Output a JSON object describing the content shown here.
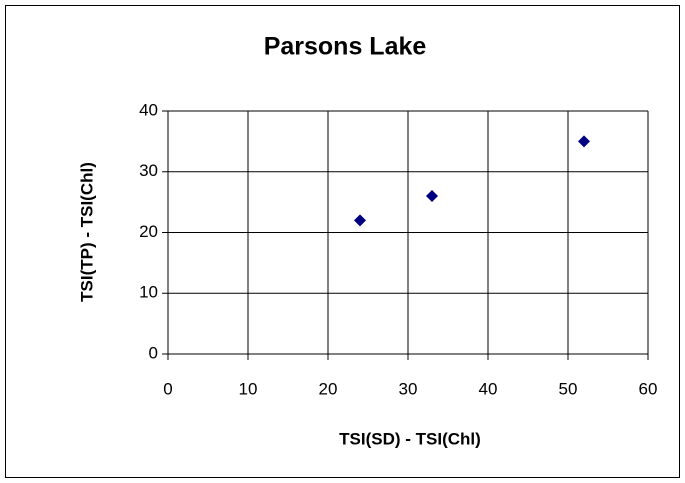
{
  "chart_data": {
    "type": "scatter",
    "title": "Parsons Lake",
    "x_label": "TSI(SD) - TSI(Chl)",
    "y_label": "TSI(TP) - TSI(Chl)",
    "series": [
      {
        "name": "Parsons Lake",
        "color": "#000080",
        "x": [
          24,
          33,
          52
        ],
        "values": [
          22,
          26,
          35
        ]
      }
    ],
    "xlim": [
      0,
      60
    ],
    "xticks": [
      0,
      10,
      20,
      30,
      40,
      50,
      60
    ],
    "ylim": [
      0,
      40
    ],
    "yticks": [
      0,
      10,
      20,
      30,
      40
    ],
    "grid": true
  }
}
